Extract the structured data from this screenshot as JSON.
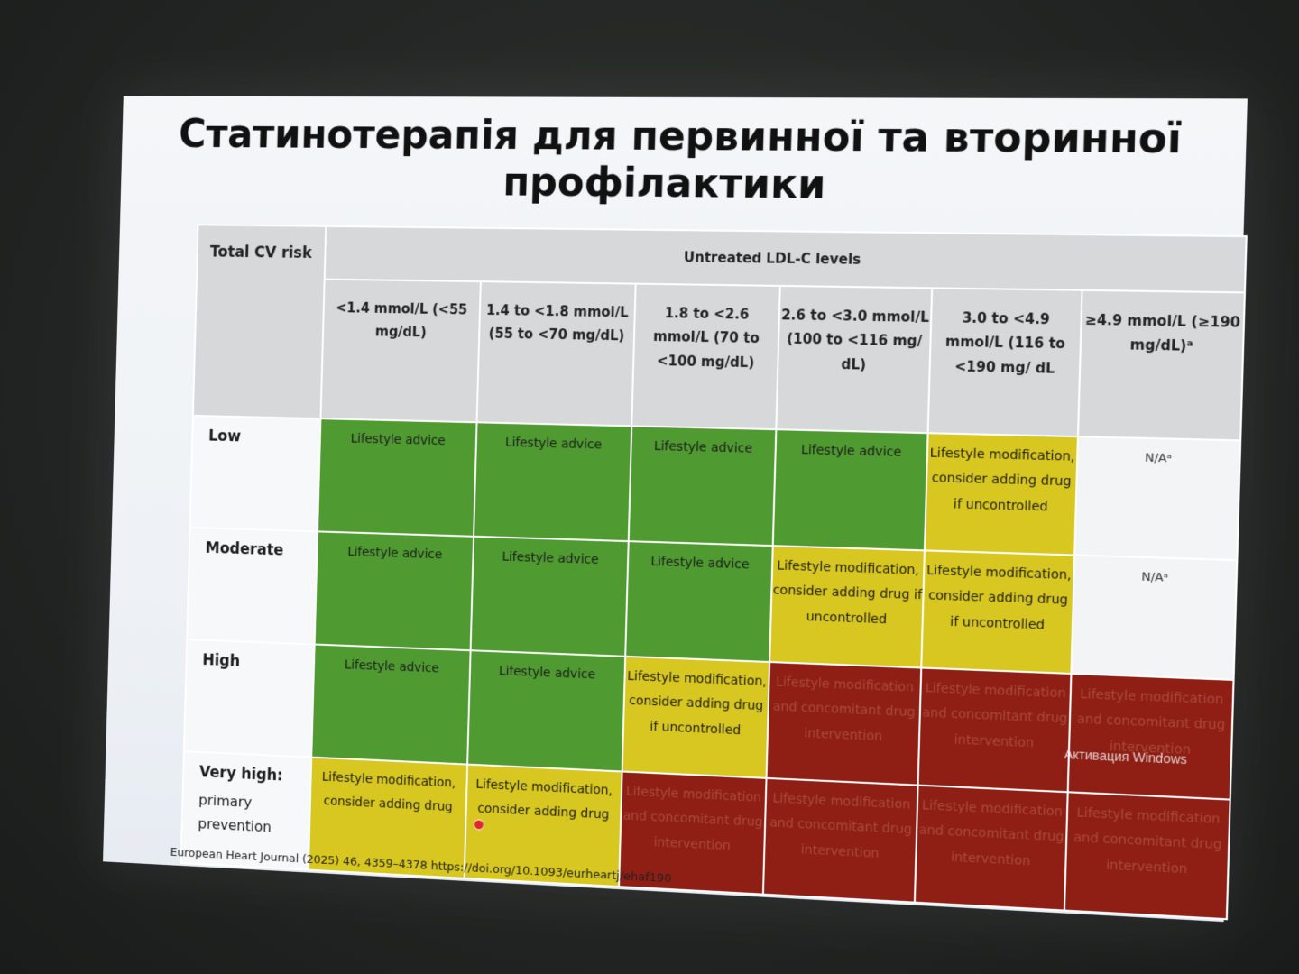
{
  "slide": {
    "title_line1": "Статинотерапія для первинної та вторинної",
    "title_line2": "профілактики",
    "footer": "European Heart Journal (2025) 46, 4359–4378 https://doi.org/10.1093/eurheartj/ehaf190",
    "watermark": "Активация Windows"
  },
  "table": {
    "risk_header": "Total CV risk",
    "group_header": "Untreated LDL-C levels",
    "columns": [
      "<1.4 mmol/L (<55 mg/dL)",
      "1.4 to <1.8 mmol/L (55 to <70 mg/dL)",
      "1.8 to <2.6 mmol/L (70 to <100 mg/dL)",
      "2.6 to <3.0 mmol/L (100 to <116 mg/ dL)",
      "3.0 to <4.9 mmol/L (116 to <190 mg/ dL",
      "≥4.9 mmol/L (≥190 mg/dL)ᵃ"
    ],
    "rows": [
      {
        "label": "Low",
        "sub": "",
        "cells": [
          {
            "text": "Lifestyle advice",
            "color": "green"
          },
          {
            "text": "Lifestyle advice",
            "color": "green"
          },
          {
            "text": "Lifestyle advice",
            "color": "green"
          },
          {
            "text": "Lifestyle advice",
            "color": "green"
          },
          {
            "text": "Lifestyle modification, consider adding drug if uncontrolled",
            "color": "yellow"
          },
          {
            "text": "N/Aᵃ",
            "color": "na"
          }
        ]
      },
      {
        "label": "Moderate",
        "sub": "",
        "cells": [
          {
            "text": "Lifestyle advice",
            "color": "green"
          },
          {
            "text": "Lifestyle advice",
            "color": "green"
          },
          {
            "text": "Lifestyle advice",
            "color": "green"
          },
          {
            "text": "Lifestyle modification, consider adding drug if uncontrolled",
            "color": "yellow"
          },
          {
            "text": "Lifestyle modification, consider adding drug if uncontrolled",
            "color": "yellow"
          },
          {
            "text": "N/Aᵃ",
            "color": "na"
          }
        ]
      },
      {
        "label": "High",
        "sub": "",
        "cells": [
          {
            "text": "Lifestyle advice",
            "color": "green"
          },
          {
            "text": "Lifestyle advice",
            "color": "green"
          },
          {
            "text": "Lifestyle modification, consider adding drug if uncontrolled",
            "color": "yellow"
          },
          {
            "text": "Lifestyle modification and concomitant drug intervention",
            "color": "red"
          },
          {
            "text": "Lifestyle modification and concomitant drug intervention",
            "color": "red"
          },
          {
            "text": "Lifestyle modification and concomitant drug intervention",
            "color": "red"
          }
        ]
      },
      {
        "label": "Very high:",
        "sub": "primary prevention",
        "cells": [
          {
            "text": "Lifestyle modification, consider adding drug",
            "color": "yellow"
          },
          {
            "text": "Lifestyle modification, consider adding drug",
            "color": "yellow"
          },
          {
            "text": "Lifestyle modification and concomitant drug intervention",
            "color": "red"
          },
          {
            "text": "Lifestyle modification and concomitant drug intervention",
            "color": "red"
          },
          {
            "text": "Lifestyle modification and concomitant drug intervention",
            "color": "red"
          },
          {
            "text": "Lifestyle modification and concomitant drug intervention",
            "color": "red"
          }
        ]
      }
    ]
  },
  "colors": {
    "green": "#4f9a31",
    "yellow": "#d8c720",
    "red": "#8f1f15",
    "header_gray": "#d6d8da"
  }
}
